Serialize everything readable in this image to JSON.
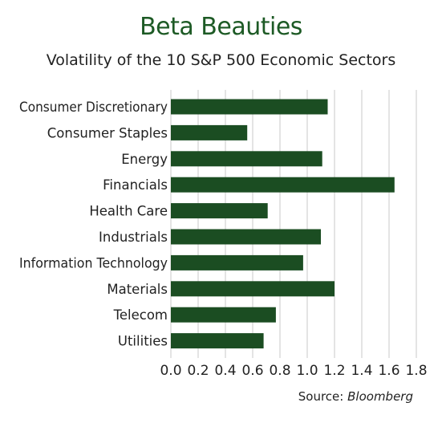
{
  "title": "Beta Beauties",
  "subtitle": "Volatility of the 10 S&P 500 Economic Sectors",
  "source_label": "Source:",
  "source_name": "Bloomberg",
  "colors": {
    "bar": "#1b4d22",
    "grid": "#c8c8c8",
    "title": "#1d5a25",
    "text": "#222222"
  },
  "chart_data": {
    "type": "bar",
    "orientation": "horizontal",
    "categories": [
      "Consumer Discretionary",
      "Consumer Staples",
      "Energy",
      "Financials",
      "Health Care",
      "Industrials",
      "Information Technology",
      "Materials",
      "Telecom",
      "Utilities"
    ],
    "values": [
      1.15,
      0.56,
      1.11,
      1.64,
      0.71,
      1.1,
      0.97,
      1.2,
      0.77,
      0.68
    ],
    "xlim": [
      0,
      1.8
    ],
    "xticks": [
      "0.0",
      "0.2",
      "0.4",
      "0.6",
      "0.8",
      "1.0",
      "1.2",
      "1.4",
      "1.6",
      "1.8"
    ],
    "grid": true
  }
}
